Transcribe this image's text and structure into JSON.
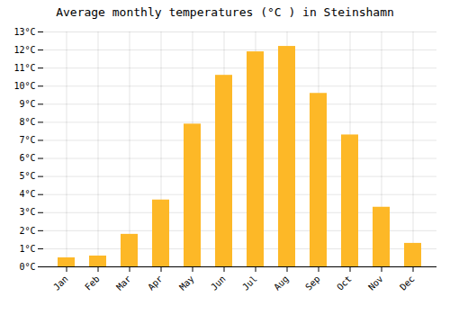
{
  "chart_data": {
    "type": "bar",
    "title": "Average monthly temperatures (°C ) in Steinshamn",
    "categories": [
      "Jan",
      "Feb",
      "Mar",
      "Apr",
      "May",
      "Jun",
      "Jul",
      "Aug",
      "Sep",
      "Oct",
      "Nov",
      "Dec"
    ],
    "values": [
      0.5,
      0.6,
      1.8,
      3.7,
      7.9,
      10.6,
      11.9,
      12.2,
      9.6,
      7.3,
      3.3,
      1.3
    ],
    "color": "#FDB827",
    "ylim": [
      0,
      13
    ],
    "yticks": [
      {
        "value": 0,
        "label": "0°C"
      },
      {
        "value": 1,
        "label": "1°C"
      },
      {
        "value": 2,
        "label": "2°C"
      },
      {
        "value": 3,
        "label": "3°C"
      },
      {
        "value": 4,
        "label": "4°C"
      },
      {
        "value": 5,
        "label": "5°C"
      },
      {
        "value": 6,
        "label": "6°C"
      },
      {
        "value": 7,
        "label": "7°C"
      },
      {
        "value": 8,
        "label": "8°C"
      },
      {
        "value": 9,
        "label": "9°C"
      },
      {
        "value": 10,
        "label": "10°C"
      },
      {
        "value": 11,
        "label": "11°C"
      },
      {
        "value": 12,
        "label": "12°C"
      },
      {
        "value": 13,
        "label": "13°C"
      }
    ],
    "grid": true
  }
}
